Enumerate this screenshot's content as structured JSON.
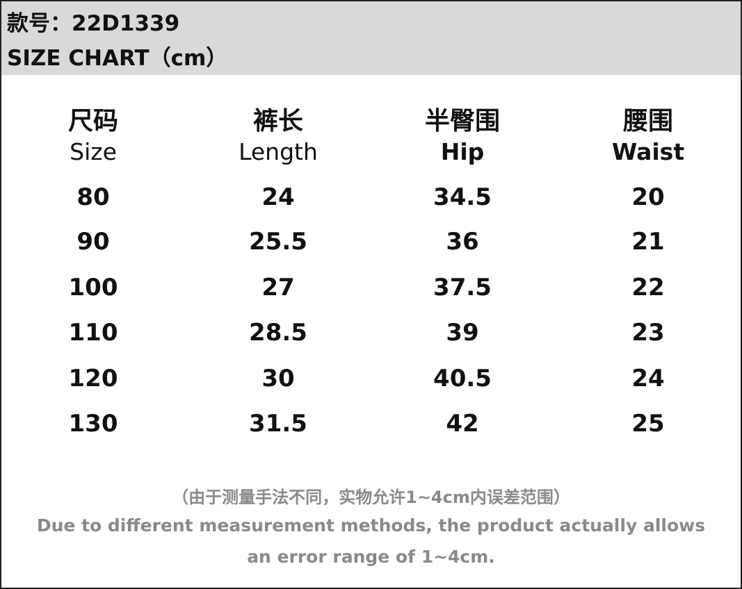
{
  "header": {
    "model": "款号：22D1339",
    "title": "SIZE CHART（cm）"
  },
  "table": {
    "columns": [
      {
        "zh": "尺码",
        "en": "Size"
      },
      {
        "zh": "裤长",
        "en": "Length"
      },
      {
        "zh": "半臀围",
        "en": "Hip"
      },
      {
        "zh": "腰围",
        "en": "Waist"
      }
    ],
    "rows": [
      [
        80,
        24,
        34.5,
        20
      ],
      [
        90,
        25.5,
        36,
        21
      ],
      [
        100,
        27,
        37.5,
        22
      ],
      [
        110,
        28.5,
        39,
        23
      ],
      [
        120,
        30,
        40.5,
        24
      ],
      [
        130,
        31.5,
        42,
        25
      ]
    ]
  },
  "note": {
    "zh": "（由于测量手法不同，实物允许1~4cm内误差范围）",
    "en_lines": [
      "Due to different measurement methods, the product actually allows",
      "an error range of 1~4cm."
    ]
  }
}
